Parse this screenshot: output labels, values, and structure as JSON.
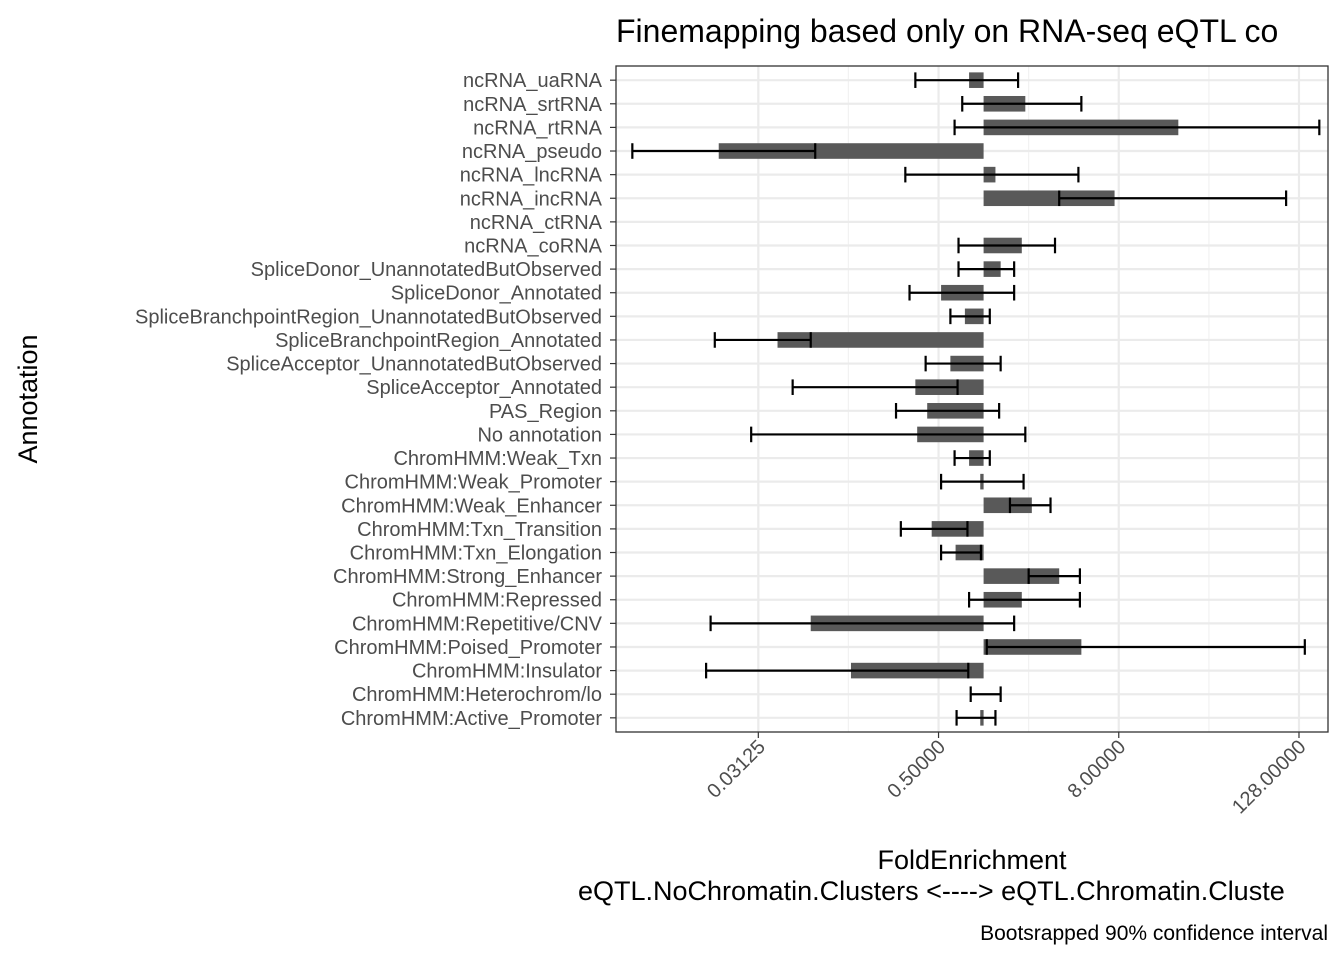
{
  "chart_data": {
    "type": "bar",
    "orientation": "horizontal",
    "title": "Finemapping based only on RNA-seq eQTL co",
    "xlabel": "FoldEnrichment",
    "xlabel_line2": "eQTL.NoChromatin.Clusters <----> eQTL.Chromatin.Cluste",
    "ylabel": "Annotation",
    "caption": "Bootsrapped 90% confidence interval",
    "x_scale": "log2",
    "xlim": [
      0.0035,
      200
    ],
    "baseline": 1,
    "x_ticks": [
      0.03125,
      0.5,
      8,
      128
    ],
    "x_tick_labels": [
      "0.03125",
      "0.50000",
      "8.00000",
      "128.00000"
    ],
    "grid": true,
    "bar_color": "#595959",
    "categories": [
      "ncRNA_uaRNA",
      "ncRNA_srtRNA",
      "ncRNA_rtRNA",
      "ncRNA_pseudo",
      "ncRNA_lncRNA",
      "ncRNA_incRNA",
      "ncRNA_ctRNA",
      "ncRNA_coRNA",
      "SpliceDonor_UnannotatedButObserved",
      "SpliceDonor_Annotated",
      "SpliceBranchpointRegion_UnannotatedButObserved",
      "SpliceBranchpointRegion_Annotated",
      "SpliceAcceptor_UnannotatedButObserved",
      "SpliceAcceptor_Annotated",
      "PAS_Region",
      "No annotation",
      "ChromHMM:Weak_Txn",
      "ChromHMM:Weak_Promoter",
      "ChromHMM:Weak_Enhancer",
      "ChromHMM:Txn_Transition",
      "ChromHMM:Txn_Elongation",
      "ChromHMM:Strong_Enhancer",
      "ChromHMM:Repressed",
      "ChromHMM:Repetitive/CNV",
      "ChromHMM:Poised_Promoter",
      "ChromHMM:Insulator",
      "ChromHMM:Heterochrom/lo",
      "ChromHMM:Active_Promoter"
    ],
    "values": [
      0.8,
      1.9,
      20.0,
      0.017,
      1.2,
      7.5,
      null,
      1.8,
      1.3,
      0.52,
      0.75,
      0.042,
      0.6,
      0.35,
      0.42,
      0.36,
      0.8,
      0.95,
      2.1,
      0.45,
      0.65,
      3.2,
      1.8,
      0.07,
      4.5,
      0.13,
      1.0,
      0.95
    ],
    "ci_lower": [
      0.35,
      0.72,
      0.64,
      0.0045,
      0.3,
      3.2,
      null,
      0.68,
      0.68,
      0.32,
      0.6,
      0.016,
      0.41,
      0.053,
      0.26,
      0.028,
      0.64,
      0.52,
      1.5,
      0.28,
      0.52,
      2.0,
      0.8,
      0.015,
      1.05,
      0.014,
      0.82,
      0.66
    ],
    "ci_upper": [
      1.7,
      4.5,
      175.0,
      0.075,
      4.3,
      105.0,
      null,
      3.0,
      1.6,
      1.6,
      1.1,
      0.07,
      1.3,
      0.67,
      1.27,
      1.9,
      1.1,
      1.85,
      2.8,
      0.78,
      0.96,
      4.4,
      4.4,
      1.6,
      140.0,
      0.79,
      1.3,
      1.2
    ]
  }
}
